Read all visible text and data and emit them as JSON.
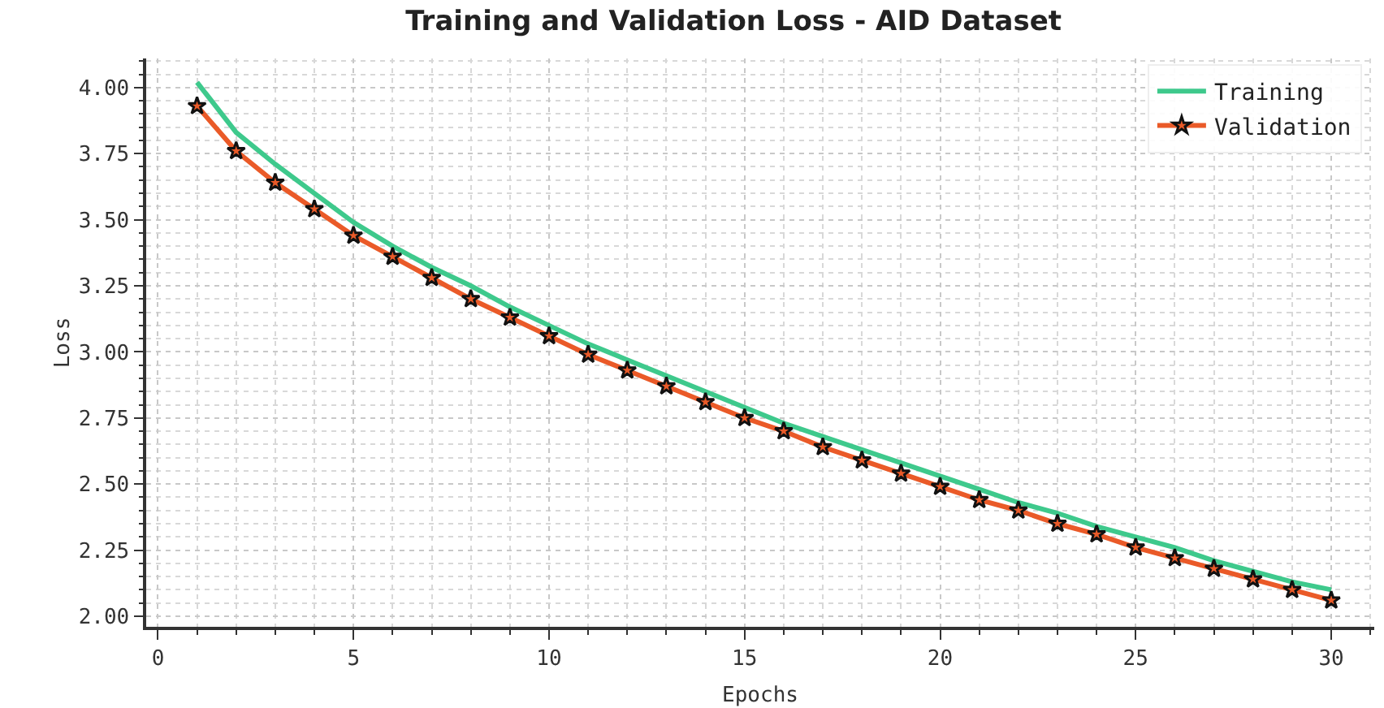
{
  "chart_data": {
    "type": "line",
    "title": "Training and Validation Loss - AID Dataset",
    "xlabel": "Epochs",
    "ylabel": "Loss",
    "x": [
      1,
      2,
      3,
      4,
      5,
      6,
      7,
      8,
      9,
      10,
      11,
      12,
      13,
      14,
      15,
      16,
      17,
      18,
      19,
      20,
      21,
      22,
      23,
      24,
      25,
      26,
      27,
      28,
      29,
      30
    ],
    "series": [
      {
        "name": "Training",
        "color": "#3ec98c",
        "marker": "none",
        "values": [
          4.02,
          3.83,
          3.71,
          3.6,
          3.49,
          3.4,
          3.32,
          3.25,
          3.17,
          3.1,
          3.03,
          2.97,
          2.91,
          2.85,
          2.79,
          2.73,
          2.68,
          2.63,
          2.58,
          2.53,
          2.48,
          2.43,
          2.39,
          2.34,
          2.3,
          2.26,
          2.21,
          2.17,
          2.13,
          2.1
        ]
      },
      {
        "name": "Validation",
        "color": "#ea5a28",
        "marker": "star",
        "values": [
          3.93,
          3.76,
          3.64,
          3.54,
          3.44,
          3.36,
          3.28,
          3.2,
          3.13,
          3.06,
          2.99,
          2.93,
          2.87,
          2.81,
          2.75,
          2.7,
          2.64,
          2.59,
          2.54,
          2.49,
          2.44,
          2.4,
          2.35,
          2.31,
          2.26,
          2.22,
          2.18,
          2.14,
          2.1,
          2.06
        ]
      }
    ],
    "xlim": [
      -0.3,
      31.1
    ],
    "xticks": [
      0,
      5,
      10,
      15,
      20,
      25,
      30
    ],
    "ylim": [
      1.96,
      4.11
    ],
    "yticks": [
      {
        "value": 2,
        "label": "2.00"
      },
      {
        "value": 2.25,
        "label": "2.25"
      },
      {
        "value": 2.5,
        "label": "2.50"
      },
      {
        "value": 2.75,
        "label": "2.75"
      },
      {
        "value": 3,
        "label": "3.00"
      },
      {
        "value": 3.25,
        "label": "3.25"
      },
      {
        "value": 3.5,
        "label": "3.50"
      },
      {
        "value": 3.75,
        "label": "3.75"
      },
      {
        "value": 4,
        "label": "4.00"
      }
    ],
    "grid": true,
    "legend": "top right",
    "line_style": "solid"
  }
}
